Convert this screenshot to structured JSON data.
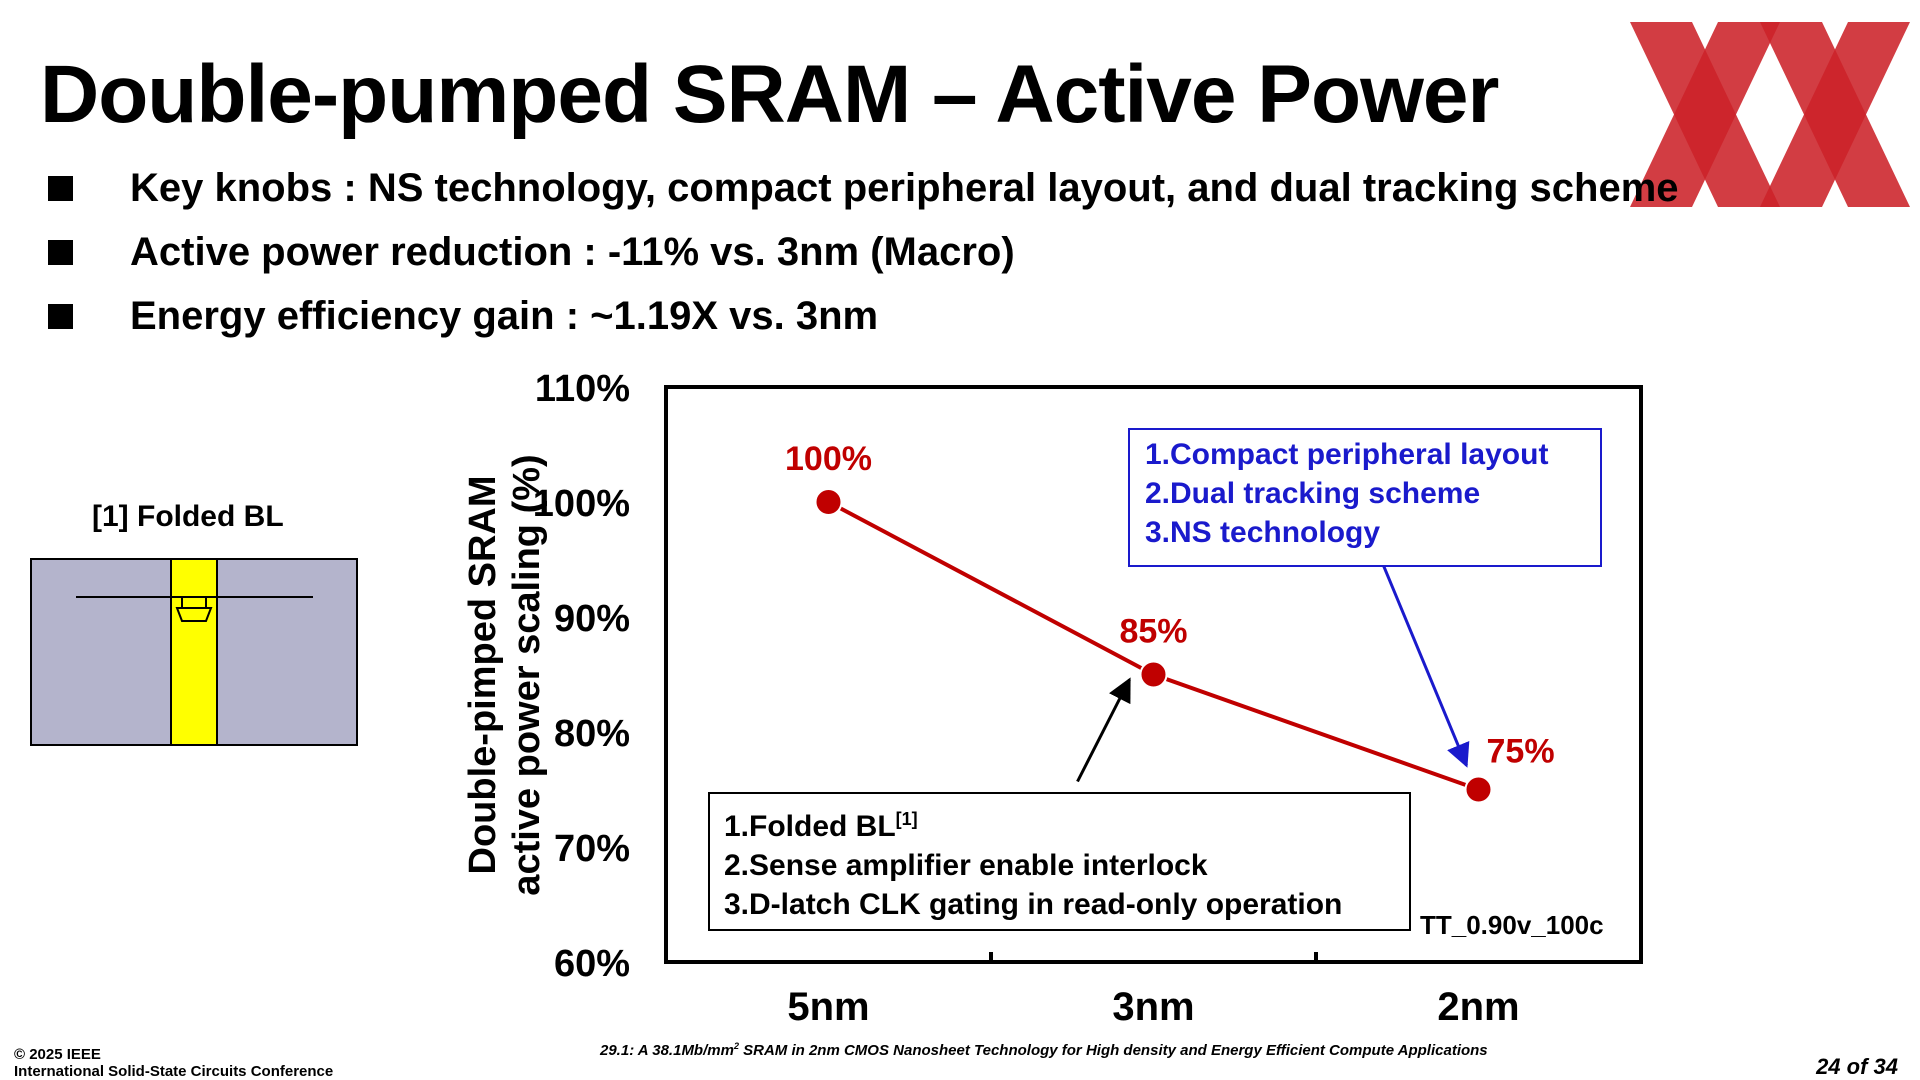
{
  "slide": {
    "title": "Double-pumped SRAM – Active Power",
    "bullets": [
      "Key knobs : NS technology, compact peripheral layout, and dual tracking scheme",
      "Active power reduction : -11% vs. 3nm (Macro)",
      "Energy efficiency gain : ~1.19X vs. 3nm"
    ]
  },
  "inset": {
    "caption": "[1] Folded BL"
  },
  "chart_data": {
    "type": "line",
    "categories": [
      "5nm",
      "3nm",
      "2nm"
    ],
    "series": [
      {
        "values": [
          100,
          85,
          75
        ],
        "labels": [
          "100%",
          "85%",
          "75%"
        ],
        "color": "#c00000"
      }
    ],
    "ylabel_lines": [
      "Double-pimped SRAM",
      "active power scaling (%)"
    ],
    "ylim": [
      60,
      110
    ],
    "yticks": [
      {
        "value": 110,
        "label": "110%"
      },
      {
        "value": 100,
        "label": "100%"
      },
      {
        "value": 90,
        "label": "90%"
      },
      {
        "value": 80,
        "label": "80%"
      },
      {
        "value": 70,
        "label": "70%"
      },
      {
        "value": 60,
        "label": "60%"
      }
    ],
    "grid": false,
    "condition_label": "TT_0.90v_100c",
    "annotations": {
      "blue": {
        "color": "#1a1acc",
        "points_to": "2nm",
        "lines": [
          "1.Compact peripheral layout",
          "2.Dual tracking scheme",
          "3.NS technology"
        ]
      },
      "black": {
        "color": "#000000",
        "points_to": "3nm",
        "lines": [
          "1.Folded BL",
          "2.Sense amplifier enable interlock",
          "3.D-latch CLK gating in read-only operation"
        ],
        "first_line_superscript": "[1]"
      }
    }
  },
  "footer": {
    "copyright": "© 2025 IEEE",
    "conference": "International Solid-State Circuits Conference",
    "paper_prefix": "29.1: A 38.1Mb/mm",
    "paper_superscript": "2",
    "paper_suffix": " SRAM in 2nm CMOS Nanosheet Technology for High density and Energy Efficient Compute Applications",
    "page": "24 of 34"
  },
  "colors": {
    "series": "#c00000",
    "blue_annotation": "#1a1acc",
    "logo": "#cc2229",
    "inset_cell": "#b4b4cc",
    "inset_bitline": "#ffff00"
  },
  "logo_icon": "xx-logo-icon"
}
